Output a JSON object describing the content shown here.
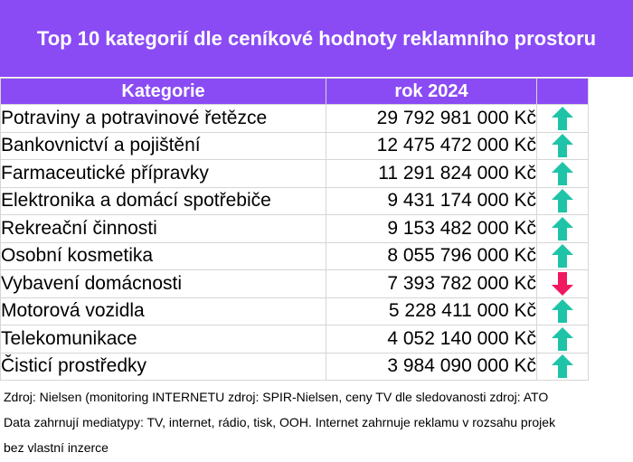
{
  "title": "Top 10 kategorií dle ceníkové hodnoty reklamního prostoru",
  "table": {
    "headers": [
      "Kategorie",
      "rok 2024",
      ""
    ],
    "rows": [
      {
        "category": "Potraviny a potravinové řetězce",
        "value": "29 792 981 000 Kč",
        "trend": "up"
      },
      {
        "category": "Bankovnictví a pojištění",
        "value": "12 475 472 000 Kč",
        "trend": "up"
      },
      {
        "category": "Farmaceutické přípravky",
        "value": "11 291 824 000 Kč",
        "trend": "up"
      },
      {
        "category": "Elektronika a domácí spotřebiče",
        "value": "9 431 174 000 Kč",
        "trend": "up"
      },
      {
        "category": "Rekreační činnosti",
        "value": "9 153 482 000 Kč",
        "trend": "up"
      },
      {
        "category": "Osobní kosmetika",
        "value": "8 055 796 000 Kč",
        "trend": "up"
      },
      {
        "category": "Vybavení domácnosti",
        "value": "7 393 782 000 Kč",
        "trend": "down"
      },
      {
        "category": "Motorová vozidla",
        "value": "5 228 411 000 Kč",
        "trend": "up"
      },
      {
        "category": "Telekomunikace",
        "value": "4 052 140 000 Kč",
        "trend": "up"
      },
      {
        "category": "Čisticí prostředky",
        "value": "3 984 090 000 Kč",
        "trend": "up"
      }
    ]
  },
  "footer": {
    "source": "Zdroj: Nielsen (monitoring INTERNETU zdroj: SPIR-Nielsen, ceny TV dle sledovanosti zdroj: ATO",
    "note_line1": "Data zahrnují mediatypy: TV, internet, rádio, tisk, OOH. Internet zahrnuje reklamu v rozsahu projek",
    "note_line2": "bez vlastní inzerce"
  },
  "colors": {
    "header_bg": "#8a4bf5",
    "arrow_up": "#1fc4a8",
    "arrow_down": "#f0185e",
    "grid": "#d6d6d6"
  },
  "icons": {
    "up": "arrow-up-icon",
    "down": "arrow-down-icon"
  }
}
